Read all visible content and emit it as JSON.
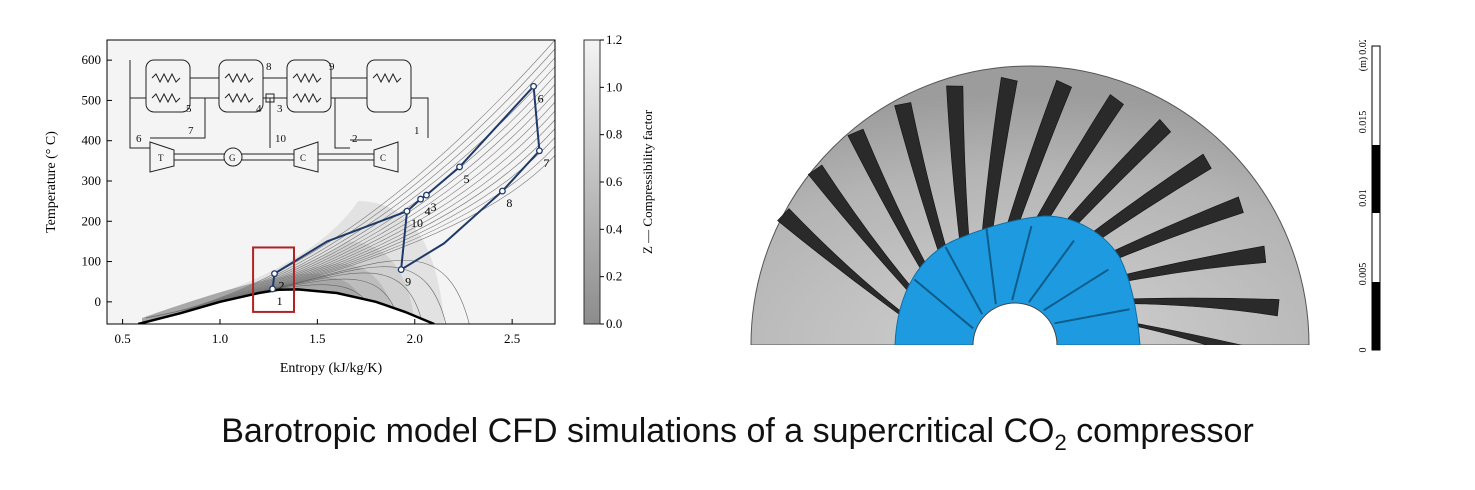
{
  "caption": {
    "text_before": "Barotropic model CFD simulations of a supercritical CO",
    "subscript": "2",
    "text_after": " compressor"
  },
  "chart_data": {
    "type": "line",
    "xlabel": "Entropy (kJ/kg/K)",
    "ylabel": "Temperature (° C)",
    "xlim": [
      0.42,
      2.72
    ],
    "ylim": [
      -55,
      650
    ],
    "x_ticks": [
      "0.5",
      "1.0",
      "1.5",
      "2.0",
      "2.5"
    ],
    "x_tick_values": [
      0.5,
      1.0,
      1.5,
      2.0,
      2.5
    ],
    "y_ticks": [
      "0",
      "100",
      "200",
      "300",
      "400",
      "500",
      "600"
    ],
    "y_tick_values": [
      0,
      100,
      200,
      300,
      400,
      500,
      600
    ],
    "colorbar": {
      "label": "Z — Compressibility factor",
      "ticks": [
        "0.0",
        "0.2",
        "0.4",
        "0.6",
        "0.8",
        "1.0",
        "1.2"
      ],
      "tick_values": [
        0.0,
        0.2,
        0.4,
        0.6,
        0.8,
        1.0,
        1.2
      ],
      "range": [
        0.0,
        1.2
      ],
      "color_low": "#8c8c8c",
      "color_high": "#f4f4f4"
    },
    "saturation_dome": {
      "s": [
        0.58,
        0.8,
        1.0,
        1.2,
        1.3,
        1.4,
        1.6,
        1.8,
        1.95,
        2.05,
        2.1
      ],
      "T": [
        -55,
        -28,
        0,
        22,
        30,
        31,
        22,
        0,
        -25,
        -45,
        -55
      ]
    },
    "state_points": [
      {
        "label": "1",
        "s": 1.27,
        "T": 32
      },
      {
        "label": "2",
        "s": 1.28,
        "T": 70
      },
      {
        "label": "3",
        "s": 2.06,
        "T": 265
      },
      {
        "label": "4",
        "s": 2.03,
        "T": 255
      },
      {
        "label": "5",
        "s": 2.23,
        "T": 335
      },
      {
        "label": "6",
        "s": 2.61,
        "T": 535
      },
      {
        "label": "7",
        "s": 2.64,
        "T": 375
      },
      {
        "label": "8",
        "s": 2.45,
        "T": 275
      },
      {
        "label": "9",
        "s": 1.93,
        "T": 80
      },
      {
        "label": "10",
        "s": 1.96,
        "T": 225
      }
    ],
    "cycle_path": [
      {
        "s": 1.27,
        "T": 32
      },
      {
        "s": 1.28,
        "T": 70
      },
      {
        "s": 1.55,
        "T": 150
      },
      {
        "s": 1.96,
        "T": 225
      },
      {
        "s": 2.03,
        "T": 255
      },
      {
        "s": 2.06,
        "T": 265
      },
      {
        "s": 2.23,
        "T": 335
      },
      {
        "s": 2.61,
        "T": 535
      },
      {
        "s": 2.64,
        "T": 375
      },
      {
        "s": 2.45,
        "T": 275
      },
      {
        "s": 2.15,
        "T": 145
      },
      {
        "s": 1.93,
        "T": 80
      },
      {
        "s": 1.96,
        "T": 225
      }
    ],
    "highlight_box": {
      "s": [
        1.17,
        1.38
      ],
      "T": [
        -25,
        135
      ],
      "color": "#b22222"
    },
    "cycle_color": "#1f3a68",
    "schematic": {
      "labels": [
        "8",
        "9",
        "5",
        "3",
        "4",
        "6",
        "7",
        "10",
        "2",
        "1"
      ],
      "components": [
        "T",
        "G",
        "C",
        "C"
      ]
    }
  },
  "scale_bar": {
    "unit": "(m)",
    "ticks": [
      "0",
      "0.005",
      "0.01",
      "0.015",
      "0.02"
    ],
    "tick_values": [
      0,
      0.005,
      0.01,
      0.015,
      0.02
    ]
  },
  "impeller": {
    "blade_color": "#2a2a2a",
    "inducer_color": "#1e9be0",
    "disk_color": "#b9b9b9"
  }
}
